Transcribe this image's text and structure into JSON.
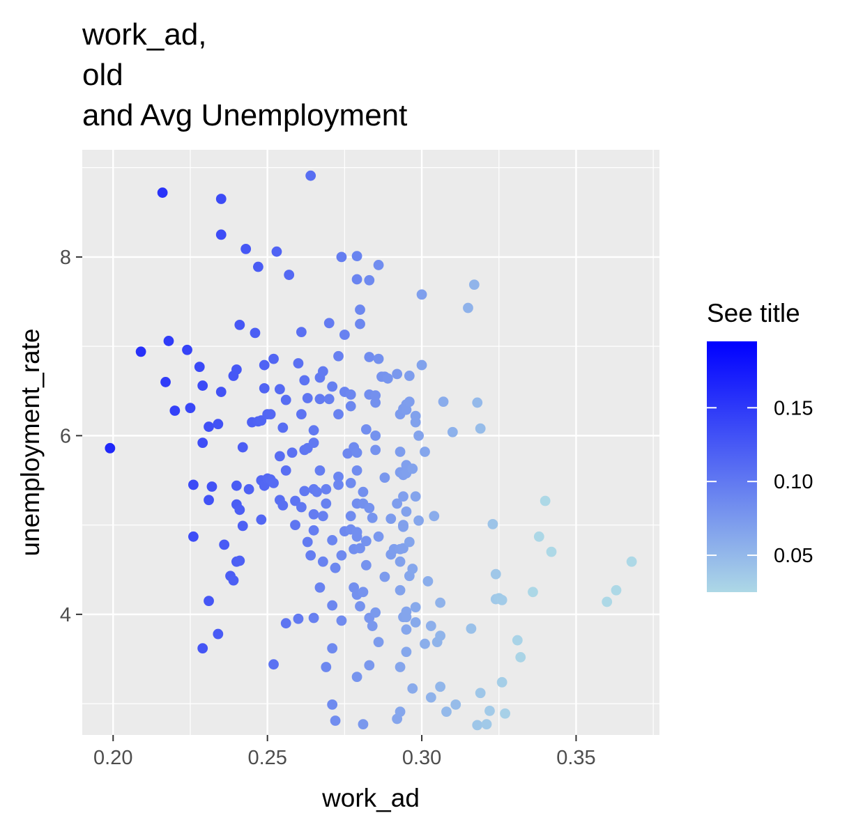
{
  "chart_data": {
    "type": "scatter",
    "title_lines": [
      "work_ad,",
      "old",
      "and Avg Unemployment"
    ],
    "xlabel": "work_ad",
    "ylabel": "unemployment_rate",
    "xlim": [
      0.19,
      0.377
    ],
    "ylim": [
      2.65,
      9.2
    ],
    "x_ticks": [
      0.2,
      0.25,
      0.3,
      0.35
    ],
    "x_tick_labels": [
      "0.20",
      "0.25",
      "0.30",
      "0.35"
    ],
    "y_ticks": [
      4,
      6,
      8
    ],
    "y_tick_labels": [
      "4",
      "6",
      "8"
    ],
    "grid": true,
    "legend": {
      "title": "See title",
      "placement": "right",
      "min": 0.025,
      "max": 0.195,
      "ticks": [
        0.05,
        0.1,
        0.15
      ],
      "tick_labels": [
        "0.05",
        "0.10",
        "0.15"
      ],
      "color_low": "#add8e6",
      "color_high": "#0000ff"
    },
    "colors": {
      "panel_background": "#ebebeb",
      "grid_major": "#ffffff",
      "tick_text": "#4d4d4d",
      "low": "#add8e6",
      "high": "#0000ff"
    },
    "points": [
      [
        0.199,
        5.86
      ],
      [
        0.209,
        6.94
      ],
      [
        0.216,
        8.72
      ],
      [
        0.217,
        6.6
      ],
      [
        0.218,
        7.06
      ],
      [
        0.22,
        6.28
      ],
      [
        0.224,
        6.96
      ],
      [
        0.225,
        6.31
      ],
      [
        0.226,
        5.45
      ],
      [
        0.226,
        4.87
      ],
      [
        0.228,
        6.77
      ],
      [
        0.229,
        6.56
      ],
      [
        0.229,
        3.62
      ],
      [
        0.229,
        5.92
      ],
      [
        0.231,
        4.15
      ],
      [
        0.231,
        6.1
      ],
      [
        0.231,
        5.28
      ],
      [
        0.232,
        5.43
      ],
      [
        0.234,
        6.13
      ],
      [
        0.234,
        3.78
      ],
      [
        0.235,
        8.25
      ],
      [
        0.235,
        6.49
      ],
      [
        0.235,
        8.65
      ],
      [
        0.236,
        4.78
      ],
      [
        0.238,
        4.43
      ],
      [
        0.239,
        6.67
      ],
      [
        0.239,
        4.38
      ],
      [
        0.24,
        6.74
      ],
      [
        0.24,
        5.23
      ],
      [
        0.24,
        4.59
      ],
      [
        0.24,
        5.44
      ],
      [
        0.241,
        5.17
      ],
      [
        0.241,
        4.6
      ],
      [
        0.241,
        7.24
      ],
      [
        0.242,
        5.87
      ],
      [
        0.242,
        4.99
      ],
      [
        0.243,
        8.09
      ],
      [
        0.244,
        5.4
      ],
      [
        0.245,
        6.15
      ],
      [
        0.246,
        7.15
      ],
      [
        0.247,
        6.16
      ],
      [
        0.247,
        7.89
      ],
      [
        0.248,
        6.17
      ],
      [
        0.248,
        5.5
      ],
      [
        0.248,
        5.06
      ],
      [
        0.249,
        5.44
      ],
      [
        0.249,
        6.53
      ],
      [
        0.249,
        6.79
      ],
      [
        0.25,
        5.52
      ],
      [
        0.25,
        6.24
      ],
      [
        0.251,
        5.51
      ],
      [
        0.251,
        6.24
      ],
      [
        0.252,
        3.44
      ],
      [
        0.252,
        6.86
      ],
      [
        0.252,
        5.47
      ],
      [
        0.253,
        8.06
      ],
      [
        0.254,
        5.28
      ],
      [
        0.254,
        5.77
      ],
      [
        0.254,
        6.52
      ],
      [
        0.255,
        6.09
      ],
      [
        0.255,
        5.22
      ],
      [
        0.256,
        6.4
      ],
      [
        0.256,
        5.61
      ],
      [
        0.257,
        7.8
      ],
      [
        0.256,
        3.9
      ],
      [
        0.258,
        5.81
      ],
      [
        0.259,
        5.0
      ],
      [
        0.259,
        5.27
      ],
      [
        0.26,
        6.81
      ],
      [
        0.26,
        3.95
      ],
      [
        0.261,
        6.24
      ],
      [
        0.261,
        5.2
      ],
      [
        0.261,
        7.16
      ],
      [
        0.262,
        5.84
      ],
      [
        0.262,
        5.38
      ],
      [
        0.262,
        6.62
      ],
      [
        0.263,
        5.86
      ],
      [
        0.263,
        4.81
      ],
      [
        0.263,
        6.42
      ],
      [
        0.264,
        8.91
      ],
      [
        0.264,
        4.66
      ],
      [
        0.265,
        3.96
      ],
      [
        0.265,
        5.4
      ],
      [
        0.265,
        5.12
      ],
      [
        0.265,
        4.94
      ],
      [
        0.265,
        6.06
      ],
      [
        0.265,
        5.92
      ],
      [
        0.266,
        5.37
      ],
      [
        0.267,
        6.41
      ],
      [
        0.267,
        5.61
      ],
      [
        0.267,
        6.65
      ],
      [
        0.268,
        4.59
      ],
      [
        0.267,
        4.3
      ],
      [
        0.268,
        5.1
      ],
      [
        0.268,
        6.72
      ],
      [
        0.269,
        5.4
      ],
      [
        0.269,
        3.41
      ],
      [
        0.269,
        5.24
      ],
      [
        0.27,
        7.26
      ],
      [
        0.27,
        6.41
      ],
      [
        0.271,
        2.99
      ],
      [
        0.271,
        4.83
      ],
      [
        0.271,
        3.62
      ],
      [
        0.271,
        4.1
      ],
      [
        0.271,
        6.55
      ],
      [
        0.272,
        4.52
      ],
      [
        0.272,
        2.81
      ],
      [
        0.272,
        4.52
      ],
      [
        0.273,
        6.24
      ],
      [
        0.273,
        5.45
      ],
      [
        0.273,
        5.54
      ],
      [
        0.273,
        6.89
      ],
      [
        0.274,
        4.66
      ],
      [
        0.274,
        3.93
      ],
      [
        0.274,
        8.0
      ],
      [
        0.275,
        7.13
      ],
      [
        0.275,
        6.49
      ],
      [
        0.275,
        4.93
      ],
      [
        0.276,
        5.8
      ],
      [
        0.277,
        6.33
      ],
      [
        0.277,
        5.47
      ],
      [
        0.277,
        5.1
      ],
      [
        0.277,
        6.46
      ],
      [
        0.277,
        4.95
      ],
      [
        0.278,
        4.3
      ],
      [
        0.278,
        5.87
      ],
      [
        0.278,
        4.73
      ],
      [
        0.279,
        8.01
      ],
      [
        0.279,
        7.75
      ],
      [
        0.279,
        5.24
      ],
      [
        0.279,
        4.22
      ],
      [
        0.279,
        3.3
      ],
      [
        0.279,
        5.61
      ],
      [
        0.279,
        4.87
      ],
      [
        0.279,
        4.92
      ],
      [
        0.279,
        5.81
      ],
      [
        0.28,
        7.25
      ],
      [
        0.28,
        7.41
      ],
      [
        0.28,
        4.74
      ],
      [
        0.28,
        4.09
      ],
      [
        0.281,
        5.37
      ],
      [
        0.281,
        5.24
      ],
      [
        0.281,
        4.25
      ],
      [
        0.281,
        2.77
      ],
      [
        0.282,
        4.55
      ],
      [
        0.282,
        6.07
      ],
      [
        0.282,
        4.82
      ],
      [
        0.283,
        6.88
      ],
      [
        0.283,
        6.46
      ],
      [
        0.283,
        3.43
      ],
      [
        0.283,
        7.74
      ],
      [
        0.283,
        5.19
      ],
      [
        0.283,
        3.96
      ],
      [
        0.284,
        5.08
      ],
      [
        0.284,
        3.87
      ],
      [
        0.285,
        6.0
      ],
      [
        0.285,
        5.84
      ],
      [
        0.285,
        6.37
      ],
      [
        0.285,
        6.45
      ],
      [
        0.285,
        4.02
      ],
      [
        0.286,
        3.69
      ],
      [
        0.286,
        7.91
      ],
      [
        0.286,
        4.87
      ],
      [
        0.286,
        6.86
      ],
      [
        0.287,
        6.66
      ],
      [
        0.288,
        5.53
      ],
      [
        0.288,
        4.42
      ],
      [
        0.288,
        6.66
      ],
      [
        0.289,
        6.64
      ],
      [
        0.29,
        4.67
      ],
      [
        0.29,
        5.07
      ],
      [
        0.291,
        4.73
      ],
      [
        0.292,
        5.24
      ],
      [
        0.292,
        6.69
      ],
      [
        0.292,
        2.83
      ],
      [
        0.293,
        3.41
      ],
      [
        0.293,
        5.59
      ],
      [
        0.293,
        5.82
      ],
      [
        0.293,
        4.59
      ],
      [
        0.293,
        4.27
      ],
      [
        0.293,
        4.73
      ],
      [
        0.293,
        6.24
      ],
      [
        0.293,
        2.91
      ],
      [
        0.294,
        4.98
      ],
      [
        0.294,
        5.56
      ],
      [
        0.294,
        6.3
      ],
      [
        0.294,
        4.99
      ],
      [
        0.294,
        5.0
      ],
      [
        0.294,
        5.32
      ],
      [
        0.294,
        3.97
      ],
      [
        0.294,
        4.74
      ],
      [
        0.295,
        5.58
      ],
      [
        0.295,
        6.29
      ],
      [
        0.295,
        6.35
      ],
      [
        0.295,
        5.15
      ],
      [
        0.295,
        3.83
      ],
      [
        0.295,
        3.58
      ],
      [
        0.295,
        5.67
      ],
      [
        0.295,
        4.03
      ],
      [
        0.295,
        3.97
      ],
      [
        0.296,
        6.67
      ],
      [
        0.296,
        6.38
      ],
      [
        0.296,
        4.43
      ],
      [
        0.296,
        4.81
      ],
      [
        0.297,
        5.63
      ],
      [
        0.297,
        4.51
      ],
      [
        0.297,
        3.17
      ],
      [
        0.298,
        6.22
      ],
      [
        0.298,
        6.15
      ],
      [
        0.298,
        5.32
      ],
      [
        0.298,
        4.08
      ],
      [
        0.298,
        3.91
      ],
      [
        0.299,
        5.05
      ],
      [
        0.299,
        6.0
      ],
      [
        0.3,
        7.58
      ],
      [
        0.3,
        6.79
      ],
      [
        0.301,
        5.82
      ],
      [
        0.301,
        3.67
      ],
      [
        0.302,
        4.37
      ],
      [
        0.303,
        3.87
      ],
      [
        0.303,
        3.07
      ],
      [
        0.304,
        5.1
      ],
      [
        0.305,
        3.69
      ],
      [
        0.306,
        3.76
      ],
      [
        0.306,
        4.13
      ],
      [
        0.306,
        3.19
      ],
      [
        0.307,
        6.38
      ],
      [
        0.308,
        2.91
      ],
      [
        0.31,
        6.04
      ],
      [
        0.311,
        2.99
      ],
      [
        0.315,
        7.43
      ],
      [
        0.316,
        3.84
      ],
      [
        0.317,
        7.69
      ],
      [
        0.318,
        6.37
      ],
      [
        0.318,
        2.76
      ],
      [
        0.319,
        3.12
      ],
      [
        0.319,
        6.08
      ],
      [
        0.321,
        2.77
      ],
      [
        0.322,
        2.92
      ],
      [
        0.323,
        5.01
      ],
      [
        0.324,
        4.45
      ],
      [
        0.324,
        4.17
      ],
      [
        0.325,
        4.18
      ],
      [
        0.326,
        4.16
      ],
      [
        0.326,
        3.24
      ],
      [
        0.327,
        2.89
      ],
      [
        0.331,
        3.71
      ],
      [
        0.332,
        3.52
      ],
      [
        0.336,
        4.25
      ],
      [
        0.338,
        4.87
      ],
      [
        0.34,
        5.27
      ],
      [
        0.342,
        4.7
      ],
      [
        0.36,
        4.14
      ],
      [
        0.363,
        4.27
      ],
      [
        0.368,
        4.59
      ]
    ]
  }
}
